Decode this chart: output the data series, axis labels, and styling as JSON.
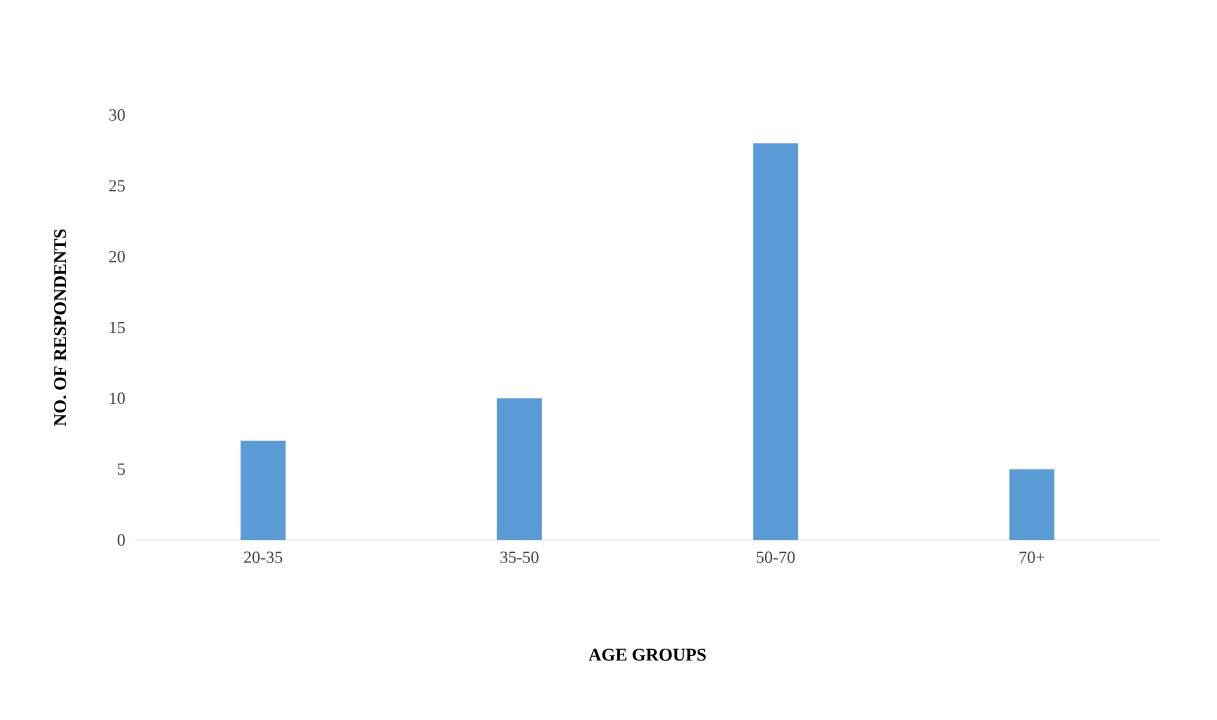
{
  "chart_data": {
    "type": "bar",
    "xlabel": "AGE GROUPS",
    "ylabel": "NO. OF RESPONDENTS",
    "categories": [
      "20-35",
      "35-50",
      "50-70",
      "70+"
    ],
    "values": [
      7,
      10,
      28,
      5
    ],
    "color": "#5b9bd5",
    "ylim": [
      0,
      30
    ],
    "yticks": [
      0,
      5,
      10,
      15,
      20,
      25,
      30
    ],
    "grid": false
  }
}
